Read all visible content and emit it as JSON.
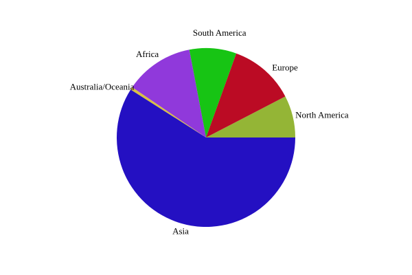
{
  "chart_data": {
    "type": "pie",
    "title": "",
    "start_angle_deg": 0,
    "direction": "counterclockwise",
    "slices": [
      {
        "label": "North America",
        "value": 7.6,
        "color": "#94b536"
      },
      {
        "label": "Europe",
        "value": 11.9,
        "color": "#bb0b24"
      },
      {
        "label": "South America",
        "value": 8.5,
        "color": "#17c414"
      },
      {
        "label": "Africa",
        "value": 12.5,
        "color": "#9039db"
      },
      {
        "label": "Australia/Oceania",
        "value": 0.5,
        "color": "#d8c043"
      },
      {
        "label": "Asia",
        "value": 59.0,
        "color": "#2410c2"
      }
    ]
  }
}
